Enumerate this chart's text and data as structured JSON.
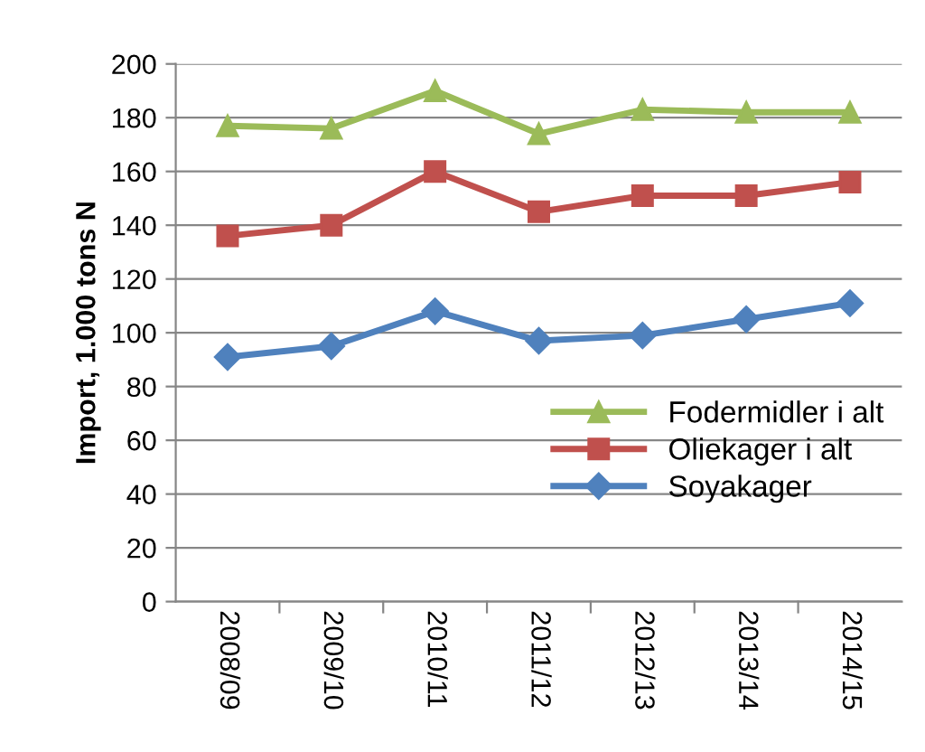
{
  "chart_data": {
    "type": "line",
    "ylabel": "Import, 1.000 tons N",
    "categories": [
      "2008/09",
      "2009/10",
      "2010/11",
      "2011/12",
      "2012/13",
      "2013/14",
      "2014/15"
    ],
    "series": [
      {
        "name": "Fodermidler i alt",
        "color": "#9bbb59",
        "marker": "triangle",
        "values": [
          177,
          176,
          190,
          174,
          183,
          182,
          182
        ]
      },
      {
        "name": "Oliekager i alt",
        "color": "#c0504d",
        "marker": "square",
        "values": [
          136,
          140,
          160,
          145,
          151,
          151,
          156
        ]
      },
      {
        "name": "Soyakager",
        "color": "#4f81bd",
        "marker": "diamond",
        "values": [
          91,
          95,
          108,
          97,
          99,
          105,
          111
        ]
      }
    ],
    "ylim": [
      0,
      200
    ],
    "yticks": [
      0,
      20,
      40,
      60,
      80,
      100,
      120,
      140,
      160,
      180,
      200
    ],
    "grid": "y",
    "legend": "lower right",
    "line_style": "solid"
  }
}
